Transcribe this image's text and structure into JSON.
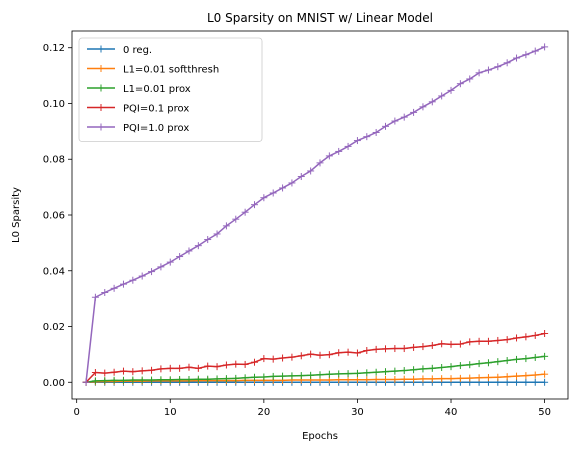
{
  "chart_data": {
    "type": "line",
    "title": "L0 Sparsity on MNIST w/ Linear Model",
    "xlabel": "Epochs",
    "ylabel": "L0 Sparsity",
    "xlim": [
      -0.5,
      52.5
    ],
    "ylim": [
      -0.006,
      0.126
    ],
    "x_ticks": [
      0,
      10,
      20,
      30,
      40,
      50
    ],
    "x_tick_labels": [
      "0",
      "10",
      "20",
      "30",
      "40",
      "50"
    ],
    "y_ticks": [
      0.0,
      0.02,
      0.04,
      0.06,
      0.08,
      0.1,
      0.12
    ],
    "y_tick_labels": [
      "0.00",
      "0.02",
      "0.04",
      "0.06",
      "0.08",
      "0.10",
      "0.12"
    ],
    "grid": false,
    "legend_position": "upper-left",
    "marker": "+",
    "x": [
      1,
      2,
      3,
      4,
      5,
      6,
      7,
      8,
      9,
      10,
      11,
      12,
      13,
      14,
      15,
      16,
      17,
      18,
      19,
      20,
      21,
      22,
      23,
      24,
      25,
      26,
      27,
      28,
      29,
      30,
      31,
      32,
      33,
      34,
      35,
      36,
      37,
      38,
      39,
      40,
      41,
      42,
      43,
      44,
      45,
      46,
      47,
      48,
      49,
      50
    ],
    "series": [
      {
        "name": "0 reg.",
        "color": "#1f77b4",
        "values": [
          0.0,
          0.0,
          0.0,
          0.0,
          0.0,
          0.0,
          0.0,
          0.0,
          0.0,
          0.0,
          0.0,
          0.0,
          0.0,
          0.0,
          0.0,
          0.0,
          0.0,
          0.0,
          0.0,
          0.0,
          0.0,
          0.0,
          0.0,
          0.0,
          0.0,
          0.0,
          0.0,
          0.0,
          0.0,
          0.0,
          0.0,
          0.0,
          0.0,
          0.0,
          0.0,
          0.0,
          0.0,
          0.0,
          0.0,
          0.0,
          0.0,
          0.0,
          0.0,
          0.0,
          0.0,
          0.0,
          0.0,
          0.0,
          0.0,
          0.0
        ]
      },
      {
        "name": "L1=0.01 softthresh",
        "color": "#ff7f0e",
        "values": [
          0.0,
          0.0002,
          0.0003,
          0.0003,
          0.0004,
          0.0004,
          0.0004,
          0.0005,
          0.0005,
          0.0005,
          0.0005,
          0.0005,
          0.0006,
          0.0006,
          0.0006,
          0.0006,
          0.0006,
          0.0007,
          0.0007,
          0.0007,
          0.0007,
          0.0007,
          0.0008,
          0.0008,
          0.0008,
          0.0008,
          0.0008,
          0.0009,
          0.0009,
          0.0009,
          0.0009,
          0.001,
          0.001,
          0.001,
          0.0011,
          0.0011,
          0.0012,
          0.0012,
          0.0013,
          0.0013,
          0.0014,
          0.0015,
          0.0016,
          0.0017,
          0.0018,
          0.002,
          0.0022,
          0.0024,
          0.0026,
          0.0029
        ]
      },
      {
        "name": "L1=0.01 prox",
        "color": "#2ca02c",
        "values": [
          0.0,
          0.0005,
          0.0006,
          0.0007,
          0.0007,
          0.0008,
          0.0008,
          0.0008,
          0.0009,
          0.0009,
          0.001,
          0.001,
          0.0011,
          0.0011,
          0.0012,
          0.0013,
          0.0014,
          0.0016,
          0.0018,
          0.0019,
          0.0021,
          0.0022,
          0.0023,
          0.0024,
          0.0025,
          0.0027,
          0.0029,
          0.003,
          0.0031,
          0.0032,
          0.0034,
          0.0036,
          0.0038,
          0.004,
          0.0042,
          0.0045,
          0.0048,
          0.005,
          0.0053,
          0.0056,
          0.006,
          0.0063,
          0.0067,
          0.007,
          0.0074,
          0.0078,
          0.0082,
          0.0085,
          0.0089,
          0.0093
        ]
      },
      {
        "name": "PQI=0.1 prox",
        "color": "#d62728",
        "values": [
          0.0,
          0.0035,
          0.0033,
          0.0036,
          0.004,
          0.0038,
          0.0041,
          0.0043,
          0.0048,
          0.005,
          0.005,
          0.0054,
          0.005,
          0.0058,
          0.0056,
          0.0062,
          0.0065,
          0.0064,
          0.0072,
          0.0085,
          0.0083,
          0.0087,
          0.009,
          0.0095,
          0.0101,
          0.0097,
          0.0099,
          0.0106,
          0.0108,
          0.0105,
          0.0114,
          0.0118,
          0.012,
          0.0121,
          0.0121,
          0.0125,
          0.0128,
          0.0132,
          0.0138,
          0.0136,
          0.0137,
          0.0145,
          0.0147,
          0.0147,
          0.015,
          0.0153,
          0.0159,
          0.0163,
          0.0168,
          0.0175
        ]
      },
      {
        "name": "PQI=1.0 prox",
        "color": "#9467bd",
        "values": [
          0.0,
          0.0305,
          0.0322,
          0.0337,
          0.0352,
          0.0366,
          0.0381,
          0.0397,
          0.0414,
          0.0431,
          0.0451,
          0.0471,
          0.049,
          0.0512,
          0.0532,
          0.0561,
          0.0585,
          0.061,
          0.0637,
          0.0662,
          0.0679,
          0.0697,
          0.0715,
          0.0738,
          0.0758,
          0.0787,
          0.0812,
          0.0828,
          0.0846,
          0.0867,
          0.0881,
          0.0896,
          0.0918,
          0.0937,
          0.0951,
          0.0968,
          0.0988,
          0.1006,
          0.1027,
          0.1047,
          0.1071,
          0.1088,
          0.111,
          0.112,
          0.1132,
          0.1146,
          0.1163,
          0.1175,
          0.1188,
          0.1203
        ]
      }
    ]
  }
}
